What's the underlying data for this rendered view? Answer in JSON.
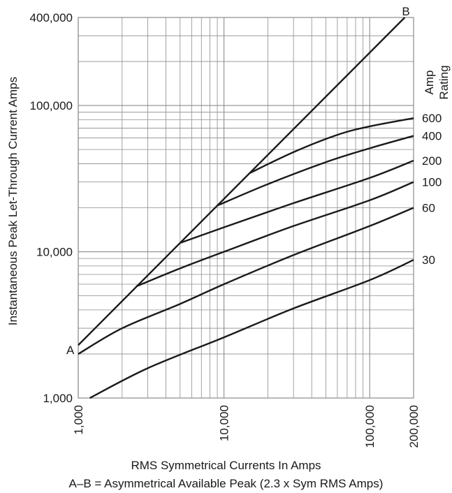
{
  "chart_data": {
    "type": "line",
    "x_scale": "log",
    "y_scale": "log",
    "xlim": [
      1000,
      200000
    ],
    "ylim": [
      1000,
      400000
    ],
    "grid": true,
    "xlabel": "RMS Symmetrical Currents In Amps",
    "ylabel": "Instantaneous Peak Let-Through Current Amps",
    "x_tick_labels": [
      {
        "value": 1000,
        "label": "1,000"
      },
      {
        "value": 10000,
        "label": "10,000"
      },
      {
        "value": 100000,
        "label": "100,000"
      },
      {
        "value": 200000,
        "label": "200,000"
      }
    ],
    "y_tick_labels": [
      {
        "value": 1000,
        "label": "1,000"
      },
      {
        "value": 10000,
        "label": "10,000"
      },
      {
        "value": 100000,
        "label": "100,000"
      },
      {
        "value": 400000,
        "label": "400,000"
      }
    ],
    "rating_header": [
      "Amp",
      "Rating"
    ],
    "asym_line": {
      "start_label": "A",
      "end_label": "B",
      "points": [
        [
          1000,
          2300
        ],
        [
          174000,
          400000
        ]
      ]
    },
    "series": [
      {
        "name": "600",
        "points": [
          [
            15000,
            34500
          ],
          [
            30000,
            48000
          ],
          [
            60000,
            63000
          ],
          [
            100000,
            72000
          ],
          [
            200000,
            82000
          ]
        ]
      },
      {
        "name": "400",
        "points": [
          [
            9000,
            20700
          ],
          [
            20000,
            29000
          ],
          [
            50000,
            41000
          ],
          [
            100000,
            51000
          ],
          [
            200000,
            62000
          ]
        ]
      },
      {
        "name": "200",
        "points": [
          [
            5000,
            11500
          ],
          [
            10000,
            14700
          ],
          [
            30000,
            21500
          ],
          [
            100000,
            32000
          ],
          [
            200000,
            42000
          ]
        ]
      },
      {
        "name": "100",
        "points": [
          [
            2500,
            5800
          ],
          [
            5000,
            7700
          ],
          [
            10000,
            10000
          ],
          [
            30000,
            15000
          ],
          [
            100000,
            22500
          ],
          [
            200000,
            30000
          ]
        ]
      },
      {
        "name": "60",
        "points": [
          [
            1000,
            2000
          ],
          [
            2000,
            3000
          ],
          [
            5000,
            4400
          ],
          [
            10000,
            6000
          ],
          [
            30000,
            9500
          ],
          [
            100000,
            15000
          ],
          [
            200000,
            20000
          ]
        ]
      },
      {
        "name": "30",
        "points": [
          [
            1200,
            1000
          ],
          [
            3000,
            1600
          ],
          [
            10000,
            2600
          ],
          [
            30000,
            4100
          ],
          [
            100000,
            6400
          ],
          [
            200000,
            8800
          ]
        ]
      }
    ]
  },
  "caption": {
    "line1": "RMS Symmetrical Currents In Amps",
    "line2": "A–B = Asymmetrical Available Peak (2.3 x Sym RMS Amps)"
  },
  "colors": {
    "grid": "#8c8c8c",
    "curve": "#1a1a1a",
    "background": "#ffffff"
  }
}
